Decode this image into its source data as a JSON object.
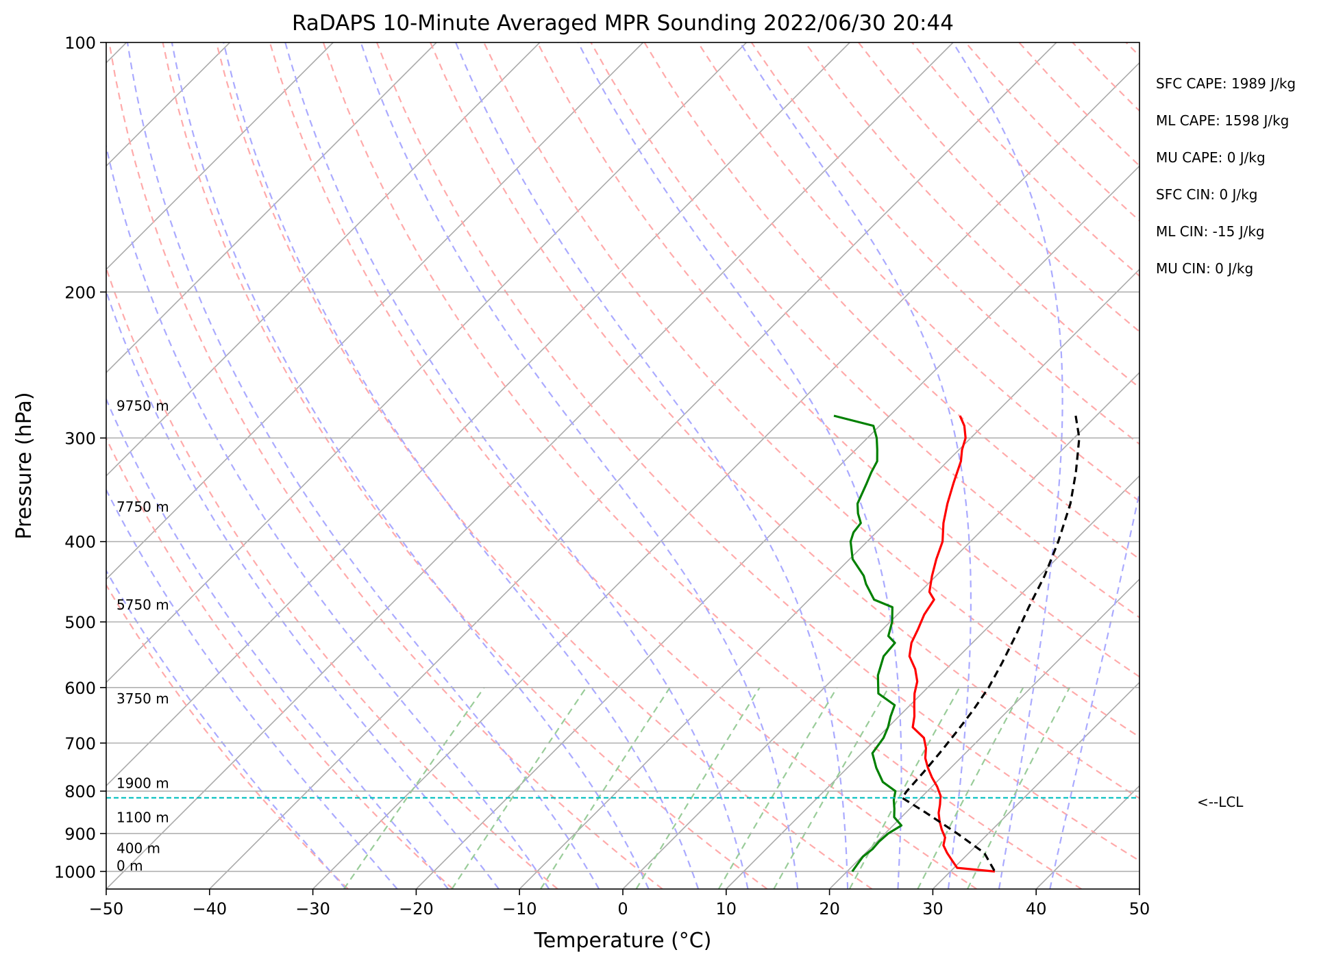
{
  "chart_data": {
    "type": "line",
    "title": "RaDAPS 10-Minute Averaged MPR Sounding 2022/06/30 20:44",
    "xlabel": "Temperature (°C)",
    "ylabel": "Pressure (hPa)",
    "xlim": [
      -50,
      50
    ],
    "ylim": [
      1050,
      100
    ],
    "y_scale": "log",
    "skew": "skew-T",
    "grid": true,
    "x_ticks": [
      -50,
      -40,
      -30,
      -20,
      -10,
      0,
      10,
      20,
      30,
      40,
      50
    ],
    "x_tick_labels": [
      "−50",
      "−40",
      "−30",
      "−20",
      "−10",
      "0",
      "10",
      "20",
      "30",
      "40",
      "50"
    ],
    "y_ticks": [
      100,
      200,
      300,
      400,
      500,
      600,
      700,
      800,
      900,
      1000
    ],
    "y_tick_labels": [
      "100",
      "200",
      "300",
      "400",
      "500",
      "600",
      "700",
      "800",
      "900",
      "1000"
    ],
    "series": [
      {
        "color": "#ff0000",
        "points": [
          [
            282,
            -13.2
          ],
          [
            290,
            -11.8
          ],
          [
            300,
            -10.5
          ],
          [
            310,
            -9.7
          ],
          [
            320,
            -8.7
          ],
          [
            340,
            -7.3
          ],
          [
            360,
            -5.9
          ],
          [
            380,
            -4.4
          ],
          [
            400,
            -2.7
          ],
          [
            420,
            -1.6
          ],
          [
            440,
            -0.4
          ],
          [
            460,
            0.9
          ],
          [
            470,
            2.1
          ],
          [
            490,
            2.6
          ],
          [
            510,
            3.4
          ],
          [
            530,
            4.1
          ],
          [
            550,
            5.2
          ],
          [
            570,
            7.0
          ],
          [
            590,
            8.4
          ],
          [
            610,
            9.3
          ],
          [
            630,
            10.4
          ],
          [
            650,
            11.5
          ],
          [
            670,
            12.4
          ],
          [
            690,
            14.5
          ],
          [
            710,
            15.7
          ],
          [
            730,
            16.6
          ],
          [
            750,
            17.8
          ],
          [
            770,
            19.1
          ],
          [
            790,
            20.5
          ],
          [
            810,
            21.7
          ],
          [
            830,
            22.5
          ],
          [
            850,
            23.2
          ],
          [
            870,
            24.1
          ],
          [
            890,
            25.1
          ],
          [
            910,
            26.2
          ],
          [
            930,
            26.8
          ],
          [
            950,
            27.9
          ],
          [
            970,
            29.1
          ],
          [
            990,
            30.3
          ],
          [
            1000,
            34.3
          ]
        ]
      },
      {
        "color": "#008000",
        "points": [
          [
            282,
            -25.4
          ],
          [
            290,
            -20.6
          ],
          [
            300,
            -19.1
          ],
          [
            310,
            -17.9
          ],
          [
            320,
            -16.8
          ],
          [
            330,
            -16.3
          ],
          [
            340,
            -15.7
          ],
          [
            360,
            -14.6
          ],
          [
            370,
            -13.6
          ],
          [
            380,
            -12.4
          ],
          [
            390,
            -12.2
          ],
          [
            400,
            -11.6
          ],
          [
            420,
            -9.7
          ],
          [
            440,
            -7.0
          ],
          [
            450,
            -6.0
          ],
          [
            470,
            -3.7
          ],
          [
            480,
            -1.2
          ],
          [
            500,
            0.2
          ],
          [
            520,
            1.2
          ],
          [
            530,
            2.5
          ],
          [
            550,
            2.7
          ],
          [
            580,
            4.0
          ],
          [
            610,
            5.8
          ],
          [
            630,
            8.5
          ],
          [
            650,
            9.2
          ],
          [
            670,
            10.0
          ],
          [
            690,
            10.6
          ],
          [
            720,
            11.0
          ],
          [
            750,
            12.8
          ],
          [
            780,
            14.8
          ],
          [
            800,
            16.9
          ],
          [
            820,
            17.6
          ],
          [
            840,
            18.5
          ],
          [
            860,
            19.3
          ],
          [
            880,
            20.8
          ],
          [
            900,
            20.3
          ],
          [
            920,
            20.2
          ],
          [
            940,
            20.3
          ],
          [
            960,
            20.1
          ],
          [
            980,
            20.3
          ],
          [
            1000,
            20.5
          ]
        ]
      },
      {
        "color": "#000000",
        "dashed": true,
        "points": [
          [
            282,
            -2.0
          ],
          [
            300,
            0.5
          ],
          [
            330,
            3.5
          ],
          [
            360,
            6.0
          ],
          [
            400,
            8.5
          ],
          [
            440,
            10.5
          ],
          [
            480,
            12.0
          ],
          [
            520,
            13.5
          ],
          [
            560,
            14.8
          ],
          [
            600,
            15.9
          ],
          [
            640,
            16.6
          ],
          [
            680,
            17.1
          ],
          [
            720,
            17.5
          ],
          [
            760,
            17.8
          ],
          [
            800,
            18.0
          ],
          [
            815,
            18.2
          ],
          [
            850,
            22.0
          ],
          [
            900,
            27.0
          ],
          [
            950,
            31.5
          ],
          [
            1000,
            34.3
          ]
        ]
      }
    ],
    "annotations": {
      "heights": [
        {
          "text": "9750 m",
          "p": 278
        },
        {
          "text": "7750 m",
          "p": 368
        },
        {
          "text": "5750 m",
          "p": 483
        },
        {
          "text": "3750 m",
          "p": 627
        },
        {
          "text": "1900 m",
          "p": 793
        },
        {
          "text": "1100 m",
          "p": 872
        },
        {
          "text": "400 m",
          "p": 950
        },
        {
          "text": "0 m",
          "p": 997
        }
      ],
      "lcl": {
        "text": "<--LCL",
        "p": 815,
        "color": "#00bfbf"
      },
      "stats": [
        "SFC CAPE: 1989 J/kg",
        "ML CAPE: 1598 J/kg",
        "MU CAPE: 0 J/kg",
        "SFC CIN: 0 J/kg",
        "ML CIN: -15 J/kg",
        "MU CIN: 0 J/kg"
      ]
    },
    "background_lines": {
      "isotherm_color": "#aaaaaa",
      "dry_adiabat_color": "#ffaaaa",
      "moist_adiabat_color": "#aaaaff",
      "mixing_ratio_color": "#99cc99"
    }
  }
}
